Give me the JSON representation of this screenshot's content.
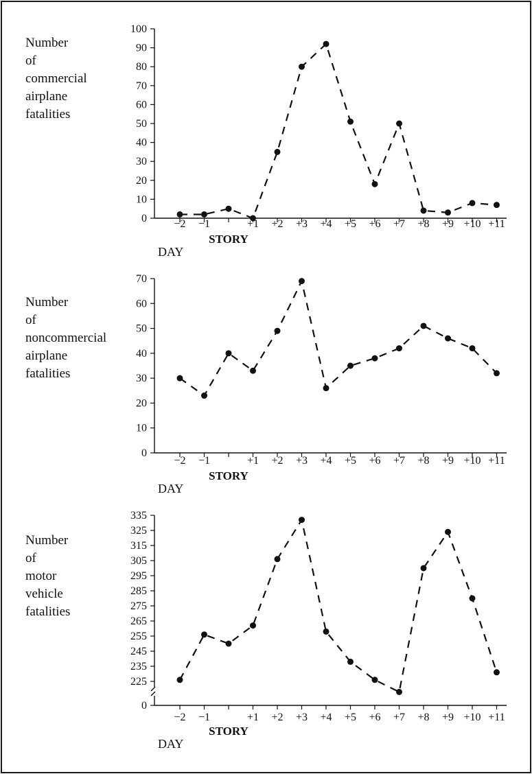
{
  "chart_data": [
    {
      "type": "line",
      "ylabel_lines": [
        "Number",
        "of",
        "commercial",
        "airplane",
        "fatalities"
      ],
      "x_title": "STORY",
      "x_prefix": "DAY",
      "categories": [
        "−2",
        "−1",
        "",
        "+1",
        "+2",
        "+3",
        "+4",
        "+5",
        "+6",
        "+7",
        "+8",
        "+9",
        "+10",
        "+11"
      ],
      "values": [
        2,
        2,
        5,
        0,
        35,
        80,
        92,
        51,
        18,
        50,
        4,
        3,
        8,
        7
      ],
      "ylim": [
        0,
        100
      ],
      "yticks": [
        0,
        10,
        20,
        30,
        40,
        50,
        60,
        70,
        80,
        90,
        100
      ],
      "axis_break": false
    },
    {
      "type": "line",
      "ylabel_lines": [
        "Number",
        "of",
        "noncommercial",
        "airplane",
        "fatalities"
      ],
      "x_title": "STORY",
      "x_prefix": "DAY",
      "categories": [
        "−2",
        "−1",
        "",
        "+1",
        "+2",
        "+3",
        "+4",
        "+5",
        "+6",
        "+7",
        "+8",
        "+9",
        "+10",
        "+11"
      ],
      "values": [
        30,
        23,
        40,
        33,
        49,
        69,
        26,
        35,
        38,
        42,
        51,
        46,
        42,
        32
      ],
      "ylim": [
        0,
        70
      ],
      "yticks": [
        0,
        10,
        20,
        30,
        40,
        50,
        60,
        70
      ],
      "axis_break": false
    },
    {
      "type": "line",
      "ylabel_lines": [
        "Number",
        "of",
        "motor",
        "vehicle",
        "fatalities"
      ],
      "x_title": "STORY",
      "x_prefix": "DAY",
      "categories": [
        "−2",
        "−1",
        "",
        "+1",
        "+2",
        "+3",
        "+4",
        "+5",
        "+6",
        "+7",
        "+8",
        "+9",
        "+10",
        "+11"
      ],
      "values": [
        226,
        256,
        250,
        262,
        306,
        332,
        258,
        238,
        226,
        218,
        300,
        324,
        280,
        231
      ],
      "ylim": [
        225,
        335
      ],
      "yticks": [
        0,
        225,
        235,
        245,
        255,
        265,
        275,
        285,
        295,
        305,
        315,
        325,
        335
      ],
      "axis_break": true
    }
  ],
  "colors": {
    "ink": "#111111"
  }
}
